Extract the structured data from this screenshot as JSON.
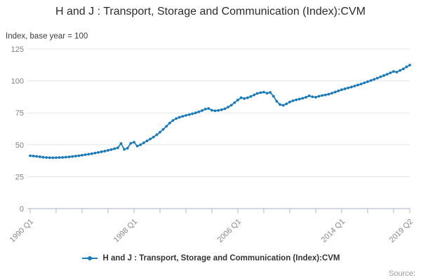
{
  "header": {
    "title": "H and J : Transport, Storage and Communication (Index):CVM",
    "axis_note": "Index, base year = 100"
  },
  "legend": {
    "label": "H and J : Transport, Storage and Communication (Index):CVM",
    "marker": "line-dot-icon"
  },
  "footer": {
    "source_label": "Source:"
  },
  "colors": {
    "line": "#1a79b8",
    "grid": "#e4e4e4",
    "axis": "#b3c2d8",
    "title_text": "#2b2b2b",
    "tick_text": "#84868c"
  },
  "chart_data": {
    "type": "line",
    "title": "H and J : Transport, Storage and Communication (Index):CVM",
    "ylabel": "Index, base year = 100",
    "xlabel": "",
    "frequency": "quarterly",
    "x_start": "1990 Q1",
    "x_end": "2019 Q2",
    "ylim": [
      0,
      125
    ],
    "y_ticks": [
      0,
      25,
      50,
      75,
      100,
      125
    ],
    "x_tick_labels": [
      "1990 Q1",
      "1998 Q1",
      "2006 Q1",
      "2014 Q1",
      "2019 Q2"
    ],
    "x_tick_label_positions": {
      "0": "1990 Q1",
      "32": "1998 Q1",
      "64": "2006 Q1",
      "96": "2014 Q1",
      "117": "2019 Q2"
    },
    "x_minor_tick_every_quarters": 8,
    "grid": "horizontal",
    "legend_position": "bottom",
    "series": [
      {
        "name": "H and J : Transport, Storage and Communication (Index):CVM",
        "values": [
          41.4,
          41.2,
          40.9,
          40.6,
          40.2,
          40.0,
          39.9,
          39.8,
          39.9,
          40.0,
          40.1,
          40.3,
          40.5,
          40.8,
          41.1,
          41.4,
          41.8,
          42.2,
          42.6,
          43.0,
          43.5,
          44.0,
          44.5,
          45.0,
          45.6,
          46.2,
          46.9,
          47.6,
          51.0,
          46.4,
          47.3,
          51.1,
          52.0,
          49.0,
          50.0,
          51.5,
          53.0,
          54.5,
          56.0,
          57.8,
          59.8,
          62.0,
          64.5,
          67.0,
          69.0,
          70.5,
          71.5,
          72.3,
          73.0,
          73.6,
          74.3,
          75.0,
          75.8,
          76.8,
          77.9,
          78.4,
          77.0,
          76.6,
          76.9,
          77.4,
          78.2,
          79.5,
          81.0,
          83.0,
          85.0,
          86.8,
          86.2,
          86.8,
          87.8,
          89.0,
          90.2,
          90.8,
          91.2,
          90.4,
          91.0,
          88.0,
          84.0,
          81.5,
          80.9,
          82.0,
          83.5,
          84.5,
          85.2,
          85.8,
          86.4,
          87.2,
          88.3,
          87.6,
          87.2,
          88.0,
          88.6,
          89.0,
          89.6,
          90.4,
          91.3,
          92.2,
          93.1,
          93.8,
          94.5,
          95.2,
          96.0,
          96.8,
          97.6,
          98.5,
          99.4,
          100.3,
          101.2,
          102.2,
          103.2,
          104.2,
          105.2,
          106.3,
          107.4,
          106.9,
          108.2,
          109.4,
          111.0,
          112.4
        ]
      }
    ]
  }
}
